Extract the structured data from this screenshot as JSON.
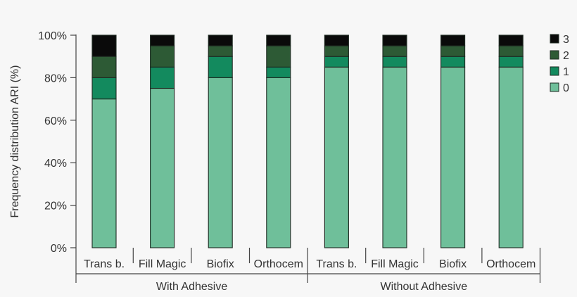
{
  "chart_data": {
    "type": "bar",
    "stacked": true,
    "ylabel": "Frequency distribution ARI (%)",
    "ylim": [
      0,
      100
    ],
    "yticks": [
      "0%",
      "20%",
      "40%",
      "60%",
      "80%",
      "100%"
    ],
    "categories": [
      "Trans b.",
      "Fill Magic",
      "Biofix",
      "Orthocem",
      "Trans b.",
      "Fill Magic",
      "Biofix",
      "Orthocem"
    ],
    "groups": [
      {
        "label": "With Adhesive",
        "count": 4
      },
      {
        "label": "Without Adhesive",
        "count": 4
      }
    ],
    "series": [
      {
        "name": "0",
        "color": "#6fbf9a",
        "values": [
          70,
          75,
          80,
          80,
          85,
          85,
          85,
          85
        ]
      },
      {
        "name": "1",
        "color": "#138a5e",
        "values": [
          10,
          10,
          10,
          5,
          5,
          5,
          5,
          5
        ]
      },
      {
        "name": "2",
        "color": "#2d5a35",
        "values": [
          10,
          10,
          5,
          10,
          5,
          5,
          5,
          5
        ]
      },
      {
        "name": "3",
        "color": "#0a0a0a",
        "values": [
          10,
          5,
          5,
          5,
          5,
          5,
          5,
          5
        ]
      }
    ],
    "legend": {
      "position": "right",
      "order": [
        "3",
        "2",
        "1",
        "0"
      ]
    },
    "grid": false
  }
}
